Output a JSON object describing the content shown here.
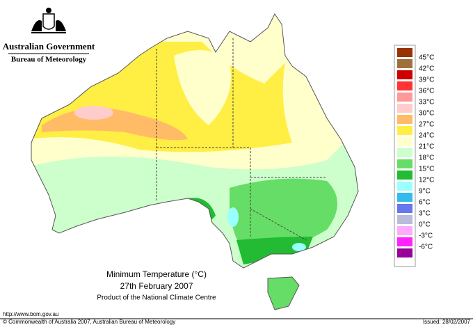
{
  "header": {
    "government": "Australian Government",
    "agency": "Bureau of Meteorology"
  },
  "map": {
    "title": "Minimum Temperature (°C)",
    "date": "27th February 2007",
    "product": "Product of the National Climate Centre"
  },
  "legend": {
    "labels": [
      "45°C",
      "42°C",
      "39°C",
      "36°C",
      "33°C",
      "30°C",
      "27°C",
      "24°C",
      "21°C",
      "18°C",
      "15°C",
      "12°C",
      "9°C",
      "6°C",
      "3°C",
      "0°C",
      "-3°C",
      "-6°C"
    ],
    "colors": [
      "#993300",
      "#a0703c",
      "#cc0000",
      "#ff3333",
      "#ff9999",
      "#ffcccc",
      "#ffbb66",
      "#ffee44",
      "#ffffcc",
      "#ccffcc",
      "#66dd66",
      "#22bb33",
      "#99ffff",
      "#33bbee",
      "#6677ee",
      "#bbbbdd",
      "#ffaaff",
      "#ff22ff",
      "#990099"
    ]
  },
  "footer": {
    "url": "http://www.bom.gov.au",
    "copyright": "© Commonwealth of Australia 2007, Australian Bureau of Meteorology",
    "issued": "Issued: 28/02/2007"
  }
}
